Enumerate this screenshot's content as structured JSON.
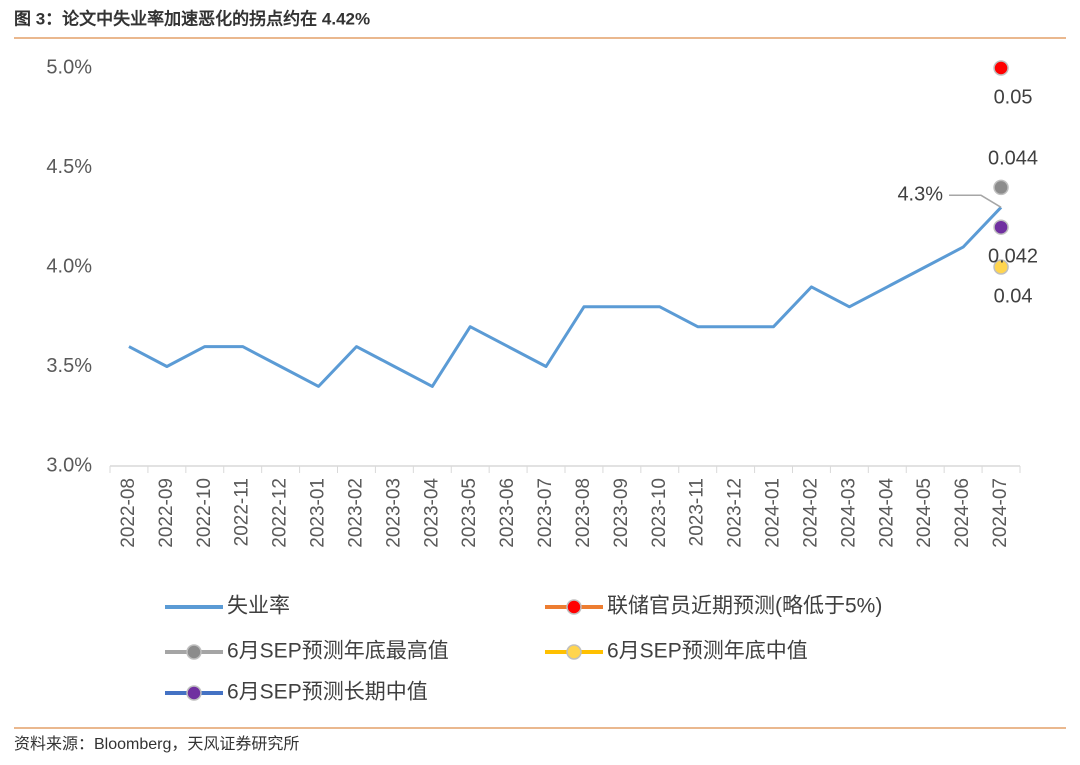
{
  "header": {
    "title": "图 3：论文中失业率加速恶化的拐点约在 4.42%"
  },
  "footer": {
    "source": "资料来源：Bloomberg，天风证券研究所"
  },
  "chart_data": {
    "type": "line",
    "categories": [
      "2022-08",
      "2022-09",
      "2022-10",
      "2022-11",
      "2022-12",
      "2023-01",
      "2023-02",
      "2023-03",
      "2023-04",
      "2023-05",
      "2023-06",
      "2023-07",
      "2023-08",
      "2023-09",
      "2023-10",
      "2023-11",
      "2023-12",
      "2024-01",
      "2024-02",
      "2024-03",
      "2024-04",
      "2024-05",
      "2024-06",
      "2024-07"
    ],
    "ylim": [
      3,
      5
    ],
    "yticks": [
      {
        "value": 3,
        "label": "3.0%"
      },
      {
        "value": 3.5,
        "label": "3.5%"
      },
      {
        "value": 4,
        "label": "4.0%"
      },
      {
        "value": 4.5,
        "label": "4.5%"
      },
      {
        "value": 5,
        "label": "5.0%"
      }
    ],
    "series": [
      {
        "name": "失业率",
        "kind": "line",
        "color": "#5b9bd5",
        "legend_line_color": "#5b9bd5",
        "values": [
          3.6,
          3.5,
          3.6,
          3.6,
          3.5,
          3.4,
          3.6,
          3.5,
          3.4,
          3.7,
          3.6,
          3.5,
          3.8,
          3.8,
          3.8,
          3.7,
          3.7,
          3.7,
          3.9,
          3.8,
          3.9,
          4.0,
          4.1,
          4.3
        ],
        "value_labels": [
          null,
          null,
          null,
          null,
          null,
          null,
          null,
          null,
          null,
          null,
          null,
          null,
          null,
          null,
          null,
          null,
          null,
          null,
          null,
          null,
          null,
          null,
          null,
          "4.3%"
        ],
        "label_position": "left"
      },
      {
        "name": "联储官员近期预测(略低于5%)",
        "kind": "point",
        "color": "#ff0000",
        "legend_line_color": "#ed7d31",
        "values": [
          null,
          null,
          null,
          null,
          null,
          null,
          null,
          null,
          null,
          null,
          null,
          null,
          null,
          null,
          null,
          null,
          null,
          null,
          null,
          null,
          null,
          null,
          null,
          5
        ],
        "value_labels": [
          null,
          null,
          null,
          null,
          null,
          null,
          null,
          null,
          null,
          null,
          null,
          null,
          null,
          null,
          null,
          null,
          null,
          null,
          null,
          null,
          null,
          null,
          null,
          "0.05"
        ],
        "label_position": "below"
      },
      {
        "name": "6月SEP预测年底最高值",
        "kind": "point",
        "color": "#8c8c8c",
        "legend_line_color": "#a5a5a5",
        "values": [
          null,
          null,
          null,
          null,
          null,
          null,
          null,
          null,
          null,
          null,
          null,
          null,
          null,
          null,
          null,
          null,
          null,
          null,
          null,
          null,
          null,
          null,
          null,
          4.4
        ],
        "value_labels": [
          null,
          null,
          null,
          null,
          null,
          null,
          null,
          null,
          null,
          null,
          null,
          null,
          null,
          null,
          null,
          null,
          null,
          null,
          null,
          null,
          null,
          null,
          null,
          "0.044"
        ],
        "label_position": "above"
      },
      {
        "name": "6月SEP预测年底中值",
        "kind": "point",
        "color": "#ffd54f",
        "legend_line_color": "#ffc000",
        "values": [
          null,
          null,
          null,
          null,
          null,
          null,
          null,
          null,
          null,
          null,
          null,
          null,
          null,
          null,
          null,
          null,
          null,
          null,
          null,
          null,
          null,
          null,
          null,
          4.0
        ],
        "value_labels": [
          null,
          null,
          null,
          null,
          null,
          null,
          null,
          null,
          null,
          null,
          null,
          null,
          null,
          null,
          null,
          null,
          null,
          null,
          null,
          null,
          null,
          null,
          null,
          "0.04"
        ],
        "label_position": "below"
      },
      {
        "name": "6月SEP预测长期中值",
        "kind": "point",
        "color": "#7030a0",
        "legend_line_color": "#4472c4",
        "values": [
          null,
          null,
          null,
          null,
          null,
          null,
          null,
          null,
          null,
          null,
          null,
          null,
          null,
          null,
          null,
          null,
          null,
          null,
          null,
          null,
          null,
          null,
          null,
          4.2
        ],
        "value_labels": [
          null,
          null,
          null,
          null,
          null,
          null,
          null,
          null,
          null,
          null,
          null,
          null,
          null,
          null,
          null,
          null,
          null,
          null,
          null,
          null,
          null,
          null,
          null,
          "0.042"
        ],
        "label_position": "below"
      }
    ]
  }
}
